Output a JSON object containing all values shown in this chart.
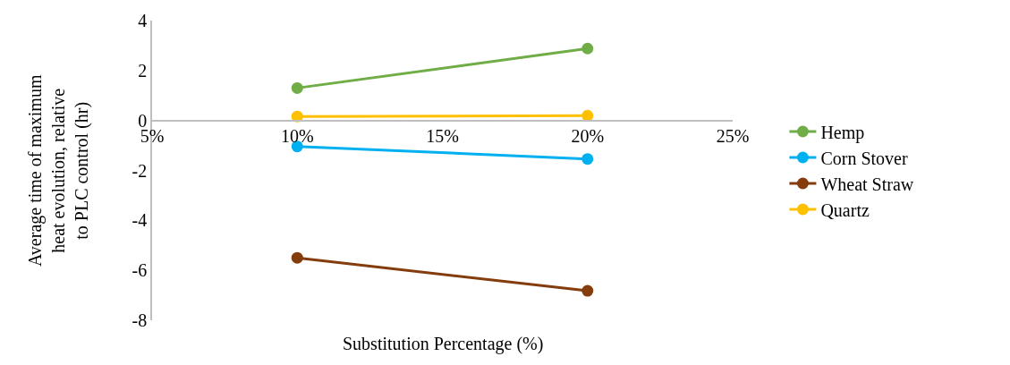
{
  "chart_data": {
    "type": "line",
    "xlabel": "Substitution Percentage (%)",
    "ylabel": "Average time of maximum heat evolution, relative to PLC control (hr)",
    "x": [
      10,
      20
    ],
    "series": [
      {
        "name": "Hemp",
        "color": "#70ad47",
        "values": [
          1.3,
          2.88
        ]
      },
      {
        "name": "Corn Stover",
        "color": "#00b0f0",
        "values": [
          -1.04,
          -1.54
        ]
      },
      {
        "name": "Wheat Straw",
        "color": "#843c0c",
        "values": [
          -5.5,
          -6.82
        ]
      },
      {
        "name": "Quartz",
        "color": "#ffc000",
        "values": [
          0.16,
          0.19
        ]
      }
    ],
    "xlim": [
      5,
      25
    ],
    "xticks": [
      {
        "value": 5,
        "label": "5%"
      },
      {
        "value": 10,
        "label": "10%"
      },
      {
        "value": 15,
        "label": "15%"
      },
      {
        "value": 20,
        "label": "20%"
      },
      {
        "value": 25,
        "label": "25%"
      }
    ],
    "ylim": [
      -8,
      4
    ],
    "yticks": [
      -8,
      -6,
      -4,
      -2,
      0,
      2,
      4
    ],
    "legend": "right",
    "marker": "circle",
    "line_style": "solid"
  }
}
